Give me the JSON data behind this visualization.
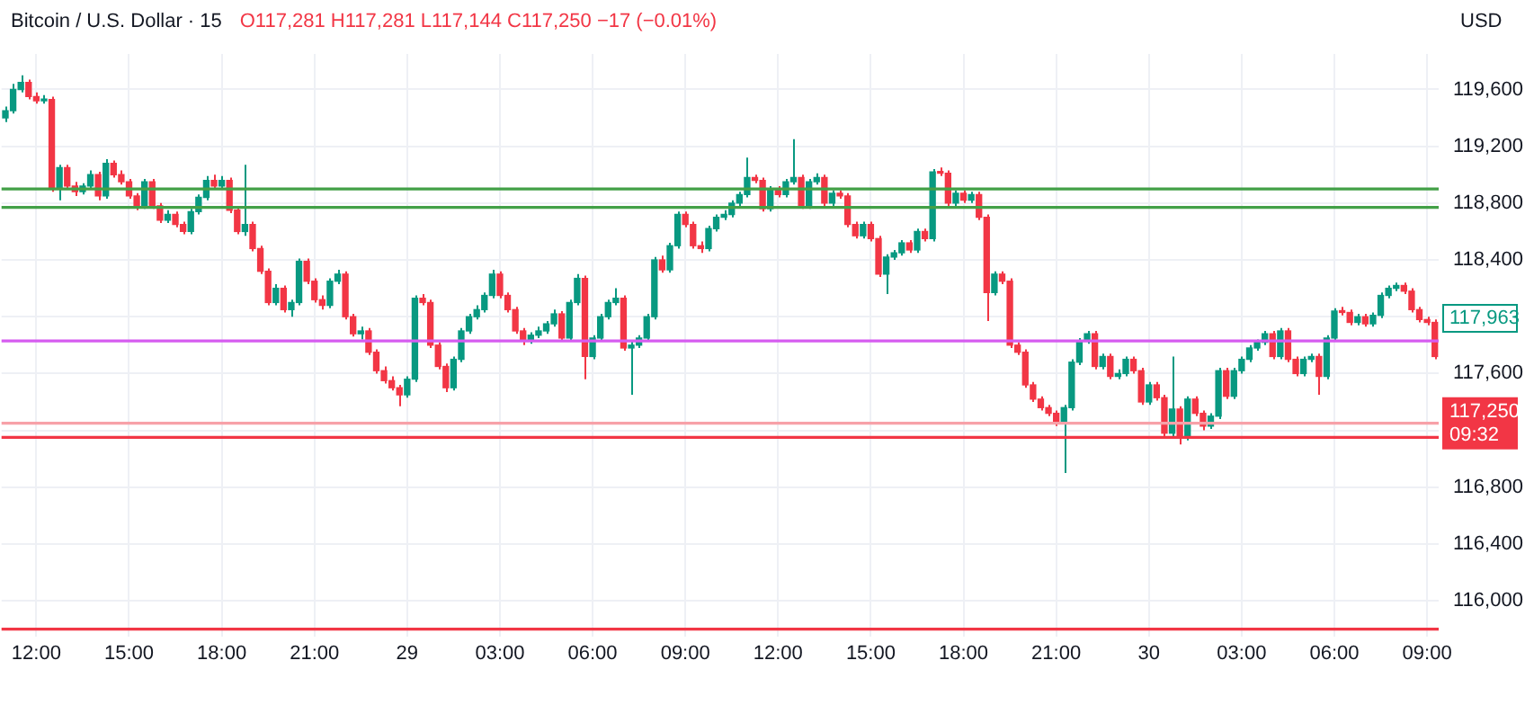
{
  "chart_data": {
    "type": "candlestick",
    "title": "Bitcoin / U.S. Dollar · 15",
    "subtitle": "O117,281 H117,281 L117,144 C117,250 −17 (−0.01%)",
    "ylabel": "USD",
    "categories": [
      null,
      null,
      null,
      null,
      "12:00",
      null,
      null,
      null,
      null,
      null,
      null,
      null,
      null,
      null,
      null,
      null,
      "15:00",
      null,
      null,
      null,
      null,
      null,
      null,
      null,
      null,
      null,
      null,
      null,
      "18:00",
      null,
      null,
      null,
      null,
      null,
      null,
      null,
      null,
      null,
      null,
      null,
      "21:00",
      null,
      null,
      null,
      null,
      null,
      null,
      null,
      null,
      null,
      null,
      null,
      "29",
      null,
      null,
      null,
      null,
      null,
      null,
      null,
      null,
      null,
      null,
      null,
      "03:00",
      null,
      null,
      null,
      null,
      null,
      null,
      null,
      null,
      null,
      null,
      null,
      "06:00",
      null,
      null,
      null,
      null,
      null,
      null,
      null,
      null,
      null,
      null,
      null,
      "09:00",
      null,
      null,
      null,
      null,
      null,
      null,
      null,
      null,
      null,
      null,
      null,
      "12:00",
      null,
      null,
      null,
      null,
      null,
      null,
      null,
      null,
      null,
      null,
      null,
      "15:00",
      null,
      null,
      null,
      null,
      null,
      null,
      null,
      null,
      null,
      null,
      null,
      "18:00",
      null,
      null,
      null,
      null,
      null,
      null,
      null,
      null,
      null,
      null,
      null,
      "21:00",
      null,
      null,
      null,
      null,
      null,
      null,
      null,
      null,
      null,
      null,
      null,
      "30",
      null,
      null,
      null,
      null,
      null,
      null,
      null,
      null,
      null,
      null,
      null,
      "03:00",
      null,
      null,
      null,
      null,
      null,
      null,
      null,
      null,
      null,
      null,
      null,
      "06:00",
      null,
      null,
      null,
      null,
      null,
      null,
      null,
      null,
      null,
      null,
      null,
      "09:00",
      null
    ],
    "ohlc": [
      [
        119400,
        119480,
        119370,
        119450
      ],
      [
        119450,
        119640,
        119430,
        119600
      ],
      [
        119600,
        119700,
        119580,
        119650
      ],
      [
        119650,
        119670,
        119530,
        119550
      ],
      [
        119550,
        119580,
        119500,
        119520
      ],
      [
        119520,
        119560,
        119500,
        119530
      ],
      [
        119530,
        119550,
        118880,
        118900
      ],
      [
        118900,
        119070,
        118820,
        119050
      ],
      [
        119050,
        119070,
        118900,
        118920
      ],
      [
        118920,
        118950,
        118850,
        118880
      ],
      [
        118880,
        118940,
        118860,
        118920
      ],
      [
        118920,
        119030,
        118900,
        119000
      ],
      [
        119000,
        119020,
        118820,
        118850
      ],
      [
        118850,
        119110,
        118830,
        119080
      ],
      [
        119080,
        119100,
        118980,
        119000
      ],
      [
        119000,
        119030,
        118930,
        118950
      ],
      [
        118950,
        118970,
        118830,
        118850
      ],
      [
        118850,
        118870,
        118750,
        118780
      ],
      [
        118780,
        118970,
        118760,
        118950
      ],
      [
        118950,
        118970,
        118760,
        118780
      ],
      [
        118780,
        118800,
        118660,
        118680
      ],
      [
        118680,
        118750,
        118660,
        118720
      ],
      [
        118720,
        118740,
        118630,
        118650
      ],
      [
        118650,
        118670,
        118580,
        118600
      ],
      [
        118600,
        118760,
        118580,
        118740
      ],
      [
        118740,
        118860,
        118720,
        118840
      ],
      [
        118840,
        118990,
        118820,
        118960
      ],
      [
        118960,
        119000,
        118900,
        118920
      ],
      [
        118920,
        118990,
        118900,
        118960
      ],
      [
        118960,
        118980,
        118730,
        118750
      ],
      [
        118750,
        118770,
        118580,
        118600
      ],
      [
        118600,
        119070,
        118570,
        118650
      ],
      [
        118650,
        118670,
        118460,
        118480
      ],
      [
        118480,
        118500,
        118300,
        118320
      ],
      [
        118320,
        118340,
        118080,
        118100
      ],
      [
        118100,
        118230,
        118080,
        118200
      ],
      [
        118200,
        118220,
        118030,
        118050
      ],
      [
        118050,
        118120,
        118000,
        118100
      ],
      [
        118100,
        118410,
        118080,
        118390
      ],
      [
        118390,
        118410,
        118230,
        118250
      ],
      [
        118250,
        118270,
        118100,
        118120
      ],
      [
        118120,
        118150,
        118050,
        118080
      ],
      [
        118080,
        118270,
        118060,
        118250
      ],
      [
        118250,
        118330,
        118230,
        118300
      ],
      [
        118300,
        118320,
        117980,
        118000
      ],
      [
        118000,
        118020,
        117860,
        117880
      ],
      [
        117880,
        117930,
        117840,
        117900
      ],
      [
        117900,
        117920,
        117730,
        117750
      ],
      [
        117750,
        117770,
        117600,
        117620
      ],
      [
        117620,
        117650,
        117530,
        117550
      ],
      [
        117550,
        117580,
        117480,
        117500
      ],
      [
        117500,
        117520,
        117370,
        117450
      ],
      [
        117450,
        117580,
        117430,
        117560
      ],
      [
        117560,
        118150,
        117540,
        118130
      ],
      [
        118130,
        118160,
        118080,
        118100
      ],
      [
        118100,
        118120,
        117780,
        117800
      ],
      [
        117800,
        117820,
        117630,
        117650
      ],
      [
        117650,
        117670,
        117470,
        117500
      ],
      [
        117500,
        117720,
        117480,
        117700
      ],
      [
        117700,
        117920,
        117680,
        117900
      ],
      [
        117900,
        118020,
        117880,
        118000
      ],
      [
        118000,
        118080,
        117980,
        118050
      ],
      [
        118050,
        118170,
        118030,
        118150
      ],
      [
        118150,
        118330,
        118130,
        118300
      ],
      [
        118300,
        118320,
        118130,
        118150
      ],
      [
        118150,
        118170,
        118030,
        118050
      ],
      [
        118050,
        118070,
        117880,
        117900
      ],
      [
        117900,
        117920,
        117800,
        117830
      ],
      [
        117830,
        117890,
        117810,
        117870
      ],
      [
        117870,
        117930,
        117850,
        117900
      ],
      [
        117900,
        117970,
        117880,
        117950
      ],
      [
        117950,
        118050,
        117930,
        118020
      ],
      [
        118020,
        118040,
        117830,
        117850
      ],
      [
        117850,
        118120,
        117830,
        118100
      ],
      [
        118100,
        118300,
        118080,
        118270
      ],
      [
        118270,
        118290,
        117560,
        117720
      ],
      [
        117720,
        117870,
        117700,
        117850
      ],
      [
        117850,
        118020,
        117830,
        118000
      ],
      [
        118000,
        118120,
        117980,
        118100
      ],
      [
        118100,
        118200,
        118080,
        118130
      ],
      [
        118130,
        118150,
        117760,
        117780
      ],
      [
        117780,
        117830,
        117450,
        117800
      ],
      [
        117800,
        117870,
        117780,
        117850
      ],
      [
        117850,
        118020,
        117830,
        118000
      ],
      [
        118000,
        118420,
        117980,
        118400
      ],
      [
        118400,
        118430,
        118310,
        118330
      ],
      [
        118330,
        118520,
        118310,
        118500
      ],
      [
        118500,
        118740,
        118480,
        118720
      ],
      [
        118720,
        118740,
        118630,
        118650
      ],
      [
        118650,
        118670,
        118480,
        118500
      ],
      [
        118500,
        118530,
        118450,
        118480
      ],
      [
        118480,
        118640,
        118460,
        118620
      ],
      [
        118620,
        118720,
        118600,
        118700
      ],
      [
        118700,
        118750,
        118680,
        118720
      ],
      [
        118720,
        118820,
        118700,
        118800
      ],
      [
        118800,
        118880,
        118780,
        118860
      ],
      [
        118860,
        119120,
        118840,
        118980
      ],
      [
        118980,
        119000,
        118940,
        118960
      ],
      [
        118960,
        118980,
        118740,
        118760
      ],
      [
        118760,
        118920,
        118740,
        118900
      ],
      [
        118900,
        118920,
        118840,
        118860
      ],
      [
        118860,
        118970,
        118840,
        118950
      ],
      [
        118950,
        119250,
        118930,
        118980
      ],
      [
        118980,
        119000,
        118760,
        118780
      ],
      [
        118780,
        118970,
        118760,
        118950
      ],
      [
        118950,
        119010,
        118930,
        118980
      ],
      [
        118980,
        119000,
        118780,
        118800
      ],
      [
        118800,
        118890,
        118780,
        118870
      ],
      [
        118870,
        118890,
        118830,
        118850
      ],
      [
        118850,
        118870,
        118630,
        118650
      ],
      [
        118650,
        118670,
        118550,
        118570
      ],
      [
        118570,
        118670,
        118550,
        118650
      ],
      [
        118650,
        118670,
        118530,
        118550
      ],
      [
        118550,
        118570,
        118280,
        118300
      ],
      [
        118300,
        118440,
        118160,
        118420
      ],
      [
        118420,
        118470,
        118400,
        118450
      ],
      [
        118450,
        118540,
        118430,
        118520
      ],
      [
        118520,
        118540,
        118450,
        118470
      ],
      [
        118470,
        118620,
        118450,
        118600
      ],
      [
        118600,
        118620,
        118530,
        118550
      ],
      [
        118550,
        119040,
        118530,
        119020
      ],
      [
        119020,
        119050,
        118990,
        119010
      ],
      [
        119010,
        119030,
        118780,
        118800
      ],
      [
        118800,
        118890,
        118780,
        118870
      ],
      [
        118870,
        118890,
        118800,
        118820
      ],
      [
        118820,
        118880,
        118800,
        118860
      ],
      [
        118860,
        118880,
        118680,
        118700
      ],
      [
        118700,
        118720,
        117970,
        118170
      ],
      [
        118170,
        118320,
        118150,
        118300
      ],
      [
        118300,
        118320,
        118230,
        118250
      ],
      [
        118250,
        118270,
        117780,
        117800
      ],
      [
        117800,
        117820,
        117730,
        117750
      ],
      [
        117750,
        117770,
        117500,
        117520
      ],
      [
        117520,
        117540,
        117400,
        117420
      ],
      [
        117420,
        117440,
        117340,
        117360
      ],
      [
        117360,
        117380,
        117300,
        117320
      ],
      [
        117320,
        117340,
        117230,
        117250
      ],
      [
        117250,
        117380,
        116900,
        117360
      ],
      [
        117360,
        117700,
        117340,
        117680
      ],
      [
        117680,
        117850,
        117660,
        117830
      ],
      [
        117830,
        117900,
        117810,
        117880
      ],
      [
        117880,
        117900,
        117630,
        117650
      ],
      [
        117650,
        117740,
        117630,
        117720
      ],
      [
        117720,
        117740,
        117560,
        117580
      ],
      [
        117580,
        117630,
        117560,
        117600
      ],
      [
        117600,
        117720,
        117580,
        117700
      ],
      [
        117700,
        117720,
        117600,
        117620
      ],
      [
        117620,
        117640,
        117380,
        117400
      ],
      [
        117400,
        117540,
        117380,
        117520
      ],
      [
        117520,
        117540,
        117410,
        117430
      ],
      [
        117430,
        117450,
        117140,
        117180
      ],
      [
        117180,
        117720,
        117160,
        117350
      ],
      [
        117350,
        117370,
        117100,
        117150
      ],
      [
        117150,
        117440,
        117130,
        117420
      ],
      [
        117420,
        117440,
        117300,
        117320
      ],
      [
        117320,
        117340,
        117200,
        117230
      ],
      [
        117230,
        117320,
        117210,
        117300
      ],
      [
        117300,
        117640,
        117280,
        117620
      ],
      [
        117620,
        117640,
        117420,
        117440
      ],
      [
        117440,
        117640,
        117420,
        117620
      ],
      [
        117620,
        117720,
        117600,
        117700
      ],
      [
        117700,
        117800,
        117680,
        117780
      ],
      [
        117780,
        117840,
        117760,
        117820
      ],
      [
        117820,
        117900,
        117800,
        117880
      ],
      [
        117880,
        117900,
        117700,
        117720
      ],
      [
        117720,
        117920,
        117700,
        117900
      ],
      [
        117900,
        117920,
        117680,
        117700
      ],
      [
        117700,
        117720,
        117580,
        117600
      ],
      [
        117600,
        117720,
        117580,
        117700
      ],
      [
        117700,
        117740,
        117680,
        117720
      ],
      [
        117720,
        117740,
        117450,
        117580
      ],
      [
        117580,
        117870,
        117560,
        117850
      ],
      [
        117850,
        118060,
        117830,
        118040
      ],
      [
        118040,
        118070,
        118010,
        118030
      ],
      [
        118030,
        118050,
        117940,
        117960
      ],
      [
        117960,
        118020,
        117940,
        118000
      ],
      [
        118000,
        118020,
        117930,
        117950
      ],
      [
        117950,
        118030,
        117930,
        118010
      ],
      [
        118010,
        118170,
        117990,
        118150
      ],
      [
        118150,
        118220,
        118130,
        118200
      ],
      [
        118200,
        118240,
        118180,
        118220
      ],
      [
        118220,
        118240,
        118160,
        118180
      ],
      [
        118180,
        118200,
        118030,
        118050
      ],
      [
        118050,
        118070,
        117960,
        117980
      ],
      [
        117980,
        118000,
        117940,
        117960
      ],
      [
        117960,
        117980,
        117700,
        117720
      ]
    ],
    "colors": [
      "#089981",
      "#089981",
      "#089981",
      "#f23645",
      "#f23645",
      "#089981",
      "#f23645",
      "#089981",
      "#f23645",
      "#f23645",
      "#089981",
      "#089981",
      "#f23645",
      "#089981",
      "#f23645",
      "#f23645",
      "#f23645",
      "#f23645",
      "#089981",
      "#f23645",
      "#f23645",
      "#089981",
      "#f23645",
      "#f23645",
      "#089981",
      "#089981",
      "#089981",
      "#f23645",
      "#089981",
      "#f23645",
      "#f23645",
      "#089981",
      "#f23645",
      "#f23645",
      "#f23645",
      "#089981",
      "#f23645",
      "#089981",
      "#089981",
      "#f23645",
      "#f23645",
      "#f23645",
      "#089981",
      "#089981",
      "#f23645",
      "#f23645",
      "#089981",
      "#f23645",
      "#f23645",
      "#f23645",
      "#f23645",
      "#f23645",
      "#089981",
      "#089981",
      "#f23645",
      "#f23645",
      "#f23645",
      "#f23645",
      "#089981",
      "#089981",
      "#089981",
      "#089981",
      "#089981",
      "#089981",
      "#f23645",
      "#f23645",
      "#f23645",
      "#f23645",
      "#089981",
      "#089981",
      "#089981",
      "#089981",
      "#f23645",
      "#089981",
      "#089981",
      "#f23645",
      "#089981",
      "#089981",
      "#089981",
      "#089981",
      "#f23645",
      "#089981",
      "#089981",
      "#089981",
      "#089981",
      "#f23645",
      "#089981",
      "#089981",
      "#f23645",
      "#f23645",
      "#f23645",
      "#089981",
      "#089981",
      "#089981",
      "#089981",
      "#089981",
      "#089981",
      "#f23645",
      "#f23645",
      "#089981",
      "#f23645",
      "#089981",
      "#089981",
      "#f23645",
      "#089981",
      "#089981",
      "#f23645",
      "#089981",
      "#f23645",
      "#f23645",
      "#f23645",
      "#089981",
      "#f23645",
      "#f23645",
      "#089981",
      "#089981",
      "#089981",
      "#f23645",
      "#089981",
      "#f23645",
      "#089981",
      "#f23645",
      "#f23645",
      "#089981",
      "#f23645",
      "#089981",
      "#f23645",
      "#f23645",
      "#089981",
      "#f23645",
      "#f23645",
      "#f23645",
      "#f23645",
      "#f23645",
      "#f23645",
      "#f23645",
      "#f23645",
      "#089981",
      "#089981",
      "#089981",
      "#089981",
      "#f23645",
      "#089981",
      "#f23645",
      "#089981",
      "#089981",
      "#f23645",
      "#f23645",
      "#089981",
      "#f23645",
      "#f23645",
      "#089981",
      "#f23645",
      "#089981",
      "#f23645",
      "#f23645",
      "#089981",
      "#089981",
      "#f23645",
      "#089981",
      "#089981",
      "#089981",
      "#089981",
      "#089981",
      "#f23645",
      "#089981",
      "#f23645",
      "#f23645",
      "#089981",
      "#089981",
      "#f23645",
      "#089981",
      "#089981",
      "#f23645",
      "#f23645",
      "#089981",
      "#f23645",
      "#089981",
      "#089981",
      "#089981",
      "#089981",
      "#f23645",
      "#f23645",
      "#f23645",
      "#f23645",
      "#f23645"
    ],
    "ylim": [
      115750,
      119850
    ],
    "yticks": [
      {
        "value": 116000,
        "label": "116,000"
      },
      {
        "value": 116400,
        "label": "116,400"
      },
      {
        "value": 116800,
        "label": "116,800"
      },
      {
        "value": 117200,
        "label": null
      },
      {
        "value": 117600,
        "label": "117,600"
      },
      {
        "value": 118000,
        "label": null
      },
      {
        "value": 118400,
        "label": "118,400"
      },
      {
        "value": 118800,
        "label": "118,800"
      },
      {
        "value": 119200,
        "label": "119,200"
      },
      {
        "value": 119600,
        "label": "119,600"
      }
    ],
    "grid": true,
    "legend": false,
    "ref_lines": [
      {
        "axis": "y",
        "value": 118900,
        "color": "#43a047"
      },
      {
        "axis": "y",
        "value": 118770,
        "color": "#43a047"
      },
      {
        "axis": "y",
        "value": 117830,
        "color": "#d65cf0"
      },
      {
        "axis": "y",
        "value": 117250,
        "label": "117,250\n09:32",
        "color": "#f7a1a8"
      },
      {
        "axis": "y",
        "value": 117150,
        "color": "#f23645"
      },
      {
        "axis": "y",
        "value": 115800,
        "color": "#f23645"
      }
    ],
    "annotations": [
      "117,963"
    ]
  }
}
